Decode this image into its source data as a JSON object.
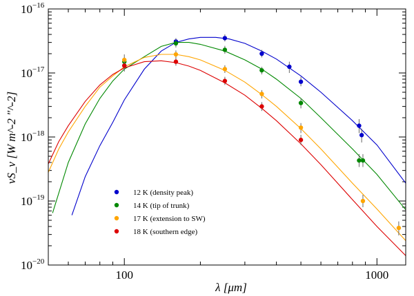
{
  "chart_data": {
    "type": "scatter",
    "title": "",
    "xlabel": "λ [μm]",
    "ylabel": "νS_ν [W m^-2 ″^-2]",
    "xscale": "log",
    "yscale": "log",
    "xlim": [
      50,
      1300
    ],
    "ylim": [
      1e-20,
      1e-16
    ],
    "x_tick_labels": [
      {
        "value": 100,
        "label": "100"
      },
      {
        "value": 1000,
        "label": "1000"
      }
    ],
    "y_tick_labels": [
      {
        "value": 1e-16,
        "base": "10",
        "exp": "−16"
      },
      {
        "value": 1e-17,
        "base": "10",
        "exp": "−17"
      },
      {
        "value": 1e-18,
        "base": "10",
        "exp": "−18"
      },
      {
        "value": 1e-19,
        "base": "10",
        "exp": "−19"
      },
      {
        "value": 1e-20,
        "base": "10",
        "exp": "−20"
      }
    ],
    "legend_position": "lower-left",
    "series": [
      {
        "name": "12 K (density peak)",
        "color": "#0000cc",
        "points": [
          {
            "x": 100,
            "y": 1.3e-17,
            "err_lo": 1.05e-17,
            "err_hi": 1.55e-17
          },
          {
            "x": 160,
            "y": 3.1e-17,
            "err_lo": 2.7e-17,
            "err_hi": 3.5e-17
          },
          {
            "x": 250,
            "y": 3.5e-17,
            "err_lo": 3.1e-17,
            "err_hi": 4e-17
          },
          {
            "x": 350,
            "y": 2e-17,
            "err_lo": 1.75e-17,
            "err_hi": 2.3e-17
          },
          {
            "x": 450,
            "y": 1.25e-17,
            "err_lo": 1e-17,
            "err_hi": 1.5e-17
          },
          {
            "x": 500,
            "y": 7.3e-18,
            "err_lo": 6.2e-18,
            "err_hi": 8.7e-18
          },
          {
            "x": 850,
            "y": 1.5e-18,
            "err_lo": 1.15e-18,
            "err_hi": 1.9e-18
          },
          {
            "x": 870,
            "y": 1.07e-18,
            "err_lo": 8.2e-19,
            "err_hi": 1.35e-18
          }
        ],
        "model_x": [
          62,
          70,
          80,
          90,
          100,
          120,
          140,
          160,
          180,
          200,
          230,
          260,
          300,
          350,
          400,
          500,
          600,
          800,
          1000,
          1300
        ],
        "model_y": [
          6e-20,
          2.4e-19,
          7.3e-19,
          1.7e-18,
          3.8e-18,
          1.15e-17,
          2.2e-17,
          3e-17,
          3.4e-17,
          3.6e-17,
          3.6e-17,
          3.4e-17,
          2.9e-17,
          2.2e-17,
          1.65e-17,
          9e-18,
          5e-18,
          1.8e-18,
          7.5e-19,
          1.9e-19
        ]
      },
      {
        "name": "14 K (tip of trunk)",
        "color": "#008800",
        "points": [
          {
            "x": 100,
            "y": 1.5e-17,
            "err_lo": 1.25e-17,
            "err_hi": 1.75e-17
          },
          {
            "x": 160,
            "y": 2.9e-17,
            "err_lo": 2.5e-17,
            "err_hi": 3.3e-17
          },
          {
            "x": 250,
            "y": 2.3e-17,
            "err_lo": 2e-17,
            "err_hi": 2.65e-17
          },
          {
            "x": 350,
            "y": 1.1e-17,
            "err_lo": 9.5e-18,
            "err_hi": 1.25e-17
          },
          {
            "x": 500,
            "y": 3.4e-18,
            "err_lo": 2.8e-18,
            "err_hi": 4e-18
          },
          {
            "x": 850,
            "y": 4.3e-19,
            "err_lo": 3.4e-19,
            "err_hi": 5.4e-19
          },
          {
            "x": 880,
            "y": 4.3e-19,
            "err_lo": 3.4e-19,
            "err_hi": 5.4e-19
          }
        ],
        "model_x": [
          52,
          60,
          70,
          80,
          90,
          100,
          120,
          140,
          160,
          180,
          200,
          250,
          300,
          350,
          400,
          500,
          600,
          800,
          1000,
          1300
        ],
        "model_y": [
          6.5e-20,
          4e-19,
          1.6e-18,
          4e-18,
          7.5e-18,
          1.15e-17,
          1.8e-17,
          2.6e-17,
          3e-17,
          3e-17,
          2.8e-17,
          2.2e-17,
          1.6e-17,
          1.15e-17,
          8e-18,
          4e-18,
          2e-18,
          6.5e-19,
          2.6e-19,
          7.3e-20
        ]
      },
      {
        "name": "17 K (extension to SW)",
        "color": "#ffa500",
        "points": [
          {
            "x": 100,
            "y": 1.6e-17,
            "err_lo": 1.3e-17,
            "err_hi": 1.95e-17
          },
          {
            "x": 160,
            "y": 1.95e-17,
            "err_lo": 1.7e-17,
            "err_hi": 2.25e-17
          },
          {
            "x": 250,
            "y": 1.15e-17,
            "err_lo": 1e-17,
            "err_hi": 1.32e-17
          },
          {
            "x": 350,
            "y": 4.7e-18,
            "err_lo": 4e-18,
            "err_hi": 5.4e-18
          },
          {
            "x": 500,
            "y": 1.4e-18,
            "err_lo": 1.15e-18,
            "err_hi": 1.65e-18
          },
          {
            "x": 880,
            "y": 1e-19,
            "err_lo": 8e-20,
            "err_hi": 1.25e-19
          },
          {
            "x": 1220,
            "y": 3.8e-20,
            "err_lo": 2.9e-20,
            "err_hi": 4.8e-20
          }
        ],
        "model_x": [
          50,
          55,
          60,
          70,
          80,
          90,
          100,
          120,
          140,
          160,
          180,
          200,
          250,
          300,
          350,
          400,
          500,
          600,
          800,
          1000,
          1300
        ],
        "model_y": [
          2.8e-19,
          6.5e-19,
          1.2e-18,
          3e-18,
          6e-18,
          9e-18,
          1.25e-17,
          1.75e-17,
          1.95e-17,
          1.95e-17,
          1.8e-17,
          1.6e-17,
          1.1e-17,
          7.2e-18,
          4.6e-18,
          3e-18,
          1.35e-18,
          6.5e-19,
          1.9e-19,
          7.5e-20,
          2.4e-20
        ]
      },
      {
        "name": "18 K (southern edge)",
        "color": "#dd0000",
        "points": [
          {
            "x": 100,
            "y": 1.3e-17,
            "err_lo": 1.1e-17,
            "err_hi": 1.55e-17
          },
          {
            "x": 160,
            "y": 1.5e-17,
            "err_lo": 1.3e-17,
            "err_hi": 1.75e-17
          },
          {
            "x": 250,
            "y": 7.5e-18,
            "err_lo": 6.5e-18,
            "err_hi": 8.7e-18
          },
          {
            "x": 350,
            "y": 3e-18,
            "err_lo": 2.55e-18,
            "err_hi": 3.5e-18
          },
          {
            "x": 500,
            "y": 9e-19,
            "err_lo": 7.5e-19,
            "err_hi": 1.08e-18
          }
        ],
        "model_x": [
          50,
          55,
          60,
          70,
          80,
          90,
          100,
          120,
          140,
          160,
          180,
          200,
          250,
          300,
          350,
          400,
          500,
          600,
          800,
          1000,
          1300
        ],
        "model_y": [
          3.8e-19,
          8.5e-19,
          1.5e-18,
          3.6e-18,
          6.5e-18,
          9.5e-18,
          1.2e-17,
          1.5e-17,
          1.55e-17,
          1.45e-17,
          1.28e-17,
          1.1e-17,
          7e-18,
          4.5e-18,
          2.8e-18,
          1.8e-18,
          7.8e-19,
          3.7e-19,
          1.05e-19,
          4e-20,
          1.4e-20
        ]
      }
    ]
  }
}
